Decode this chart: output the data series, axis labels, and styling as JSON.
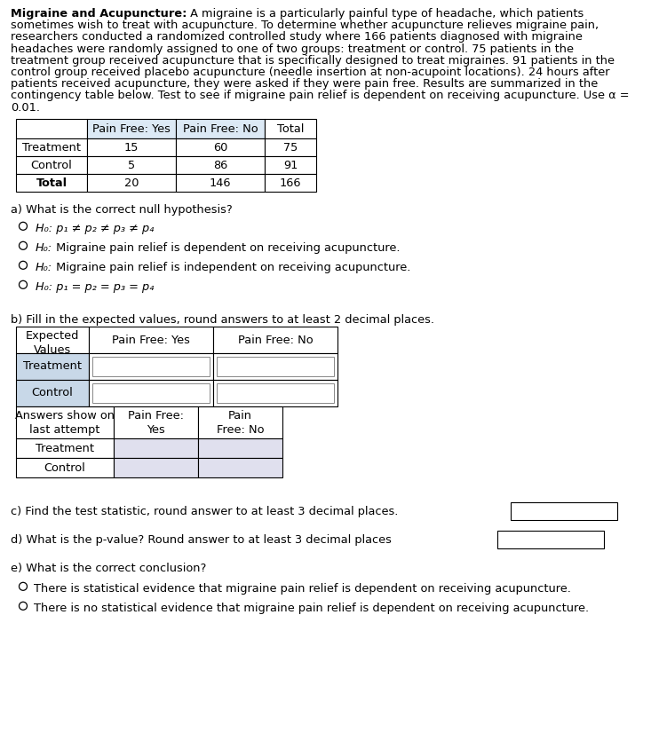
{
  "title_bold": "Migraine and Acupuncture:",
  "title_rest": " A migraine is a particularly painful type of headache, which patients sometimes wish to treat with acupuncture. To determine whether acupuncture relieves migraine pain, researchers conducted a randomized controlled study where 166 patients diagnosed with migraine headaches were randomly assigned to one of two groups: treatment or control. 75 patients in the treatment group received acupuncture that is specifically designed to treat migraines. 91 patients in the control group received placebo acupuncture (needle insertion at non-acupoint locations). 24 hours after patients received acupuncture, they were asked if they were pain free. Results are summarized in the contingency table below. Test to see if migraine pain relief is dependent on receiving acupuncture. Use α = 0.01.",
  "para_lines": [
    [
      "bold",
      "Migraine and Acupuncture:",
      " A migraine is a particularly painful type of headache, which patients"
    ],
    [
      "normal",
      "sometimes wish to treat with acupuncture. To determine whether acupuncture relieves migraine pain,"
    ],
    [
      "normal",
      "researchers conducted a randomized controlled study where 166 patients diagnosed with migraine"
    ],
    [
      "normal",
      "headaches were randomly assigned to one of two groups: treatment or control. 75 patients in the"
    ],
    [
      "normal",
      "treatment group received acupuncture that is specifically designed to treat migraines. 91 patients in the"
    ],
    [
      "normal",
      "control group received placebo acupuncture (needle insertion at non-acupoint locations). 24 hours after"
    ],
    [
      "normal",
      "patients received acupuncture, they were asked if they were pain free. Results are summarized in the"
    ],
    [
      "normal",
      "contingency table below. Test to see if migraine pain relief is dependent on receiving acupuncture. Use α ="
    ],
    [
      "normal",
      "0.01."
    ]
  ],
  "contingency_rows": [
    [
      "Treatment",
      "15",
      "60",
      "75"
    ],
    [
      "Control",
      "5",
      "86",
      "91"
    ],
    [
      "Total",
      "20",
      "146",
      "166"
    ]
  ],
  "question_a": "a) What is the correct null hypothesis?",
  "options_a": [
    {
      "h0": true,
      "italic_part": "H₀: p₁ ≠ p₂ ≠ p₃ ≠ p₄",
      "normal_part": "",
      "selected": false
    },
    {
      "h0": true,
      "italic_part": "H₀:",
      "normal_part": " Migraine pain relief is dependent on receiving acupuncture.",
      "selected": false
    },
    {
      "h0": true,
      "italic_part": "H₀:",
      "normal_part": " Migraine pain relief is independent on receiving acupuncture.",
      "selected": false
    },
    {
      "h0": true,
      "italic_part": "H₀: p₁ = p₂ = p₃ = p₄",
      "normal_part": "",
      "selected": false
    }
  ],
  "question_b": "b) Fill in the expected values, round answers to at least 2 decimal places.",
  "expected_rows": [
    "Treatment",
    "Control"
  ],
  "answers_rows": [
    "Treatment",
    "Control"
  ],
  "question_c": "c) Find the test statistic, round answer to at least 3 decimal places.",
  "question_d": "d) What is the p-value? Round answer to at least 3 decimal places",
  "question_e": "e) What is the correct conclusion?",
  "options_e": [
    "There is statistical evidence that migraine pain relief is dependent on receiving acupuncture.",
    "There is no statistical evidence that migraine pain relief is dependent on receiving acupuncture."
  ],
  "table_light_bg": "#dce9f5",
  "answer_box_color": "#e0e0ee",
  "bg_color": "#ffffff"
}
